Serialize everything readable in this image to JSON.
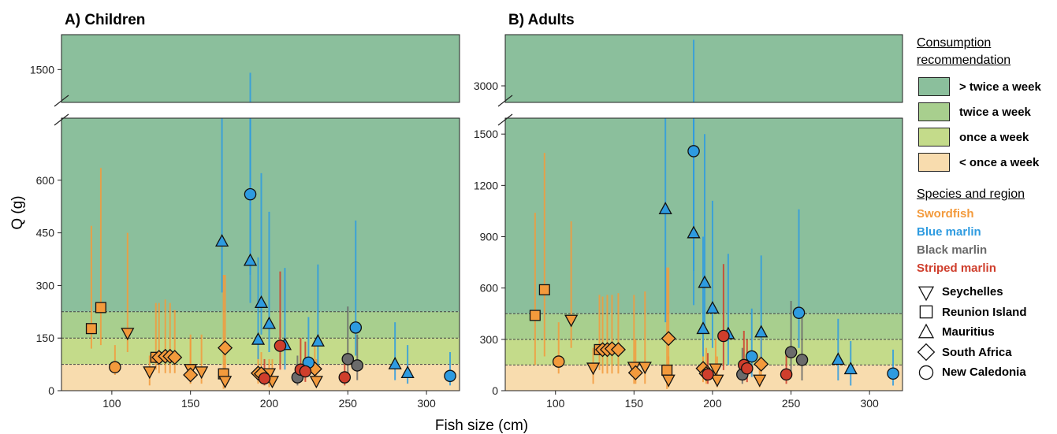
{
  "axis_labels": {
    "x": "Fish size (cm)",
    "y": "Q (g)"
  },
  "legend": {
    "recommendation_title": "Consumption recommendation",
    "recommendation": [
      {
        "label": "> twice a week",
        "color": "#8bbf9c"
      },
      {
        "label": "twice a week",
        "color": "#a8cf8e"
      },
      {
        "label": "once a week",
        "color": "#c4db8a"
      },
      {
        "label": "< once a week",
        "color": "#f8dcae"
      }
    ],
    "species_title": "Species and region",
    "species": [
      {
        "name": "Swordfish",
        "color": "#f39a3c"
      },
      {
        "name": "Blue marlin",
        "color": "#2e9be0"
      },
      {
        "name": "Black marlin",
        "color": "#6b6b6b"
      },
      {
        "name": "Striped marlin",
        "color": "#cf3e2c"
      }
    ],
    "regions": [
      {
        "name": "Seychelles",
        "shape": "triangle-down"
      },
      {
        "name": "Reunion Island",
        "shape": "square"
      },
      {
        "name": "Mauritius",
        "shape": "triangle-up"
      },
      {
        "name": "South Africa",
        "shape": "diamond"
      },
      {
        "name": "New Caledonia",
        "shape": "circle"
      }
    ]
  },
  "chart_data": [
    {
      "type": "scatter",
      "title": "A) Children",
      "xlim": [
        68,
        321
      ],
      "xticks": [
        100,
        150,
        200,
        250,
        300
      ],
      "ylim": [
        0,
        1600
      ],
      "ybreak": [
        777,
        1406
      ],
      "yticks": [
        0,
        150,
        300,
        450,
        600,
        1500
      ],
      "thresholds": [
        75,
        150,
        225
      ],
      "series": [
        {
          "species": "Swordfish",
          "region": "Reunion Island",
          "x": [
            87,
            93,
            128,
            171
          ],
          "values": [
            177,
            237,
            95,
            48
          ],
          "low": [
            120,
            130,
            60,
            5
          ],
          "high": [
            470,
            635,
            250,
            330
          ]
        },
        {
          "species": "Swordfish",
          "region": "New Caledonia",
          "x": [
            102
          ],
          "values": [
            67
          ],
          "low": [
            45
          ],
          "high": [
            130
          ]
        },
        {
          "species": "Swordfish",
          "region": "Seychelles",
          "x": [
            110,
            124,
            150,
            157,
            172,
            200,
            202,
            230
          ],
          "values": [
            165,
            55,
            62,
            55,
            28,
            50,
            28,
            28
          ],
          "low": [
            110,
            15,
            20,
            20,
            10,
            10,
            10,
            10
          ],
          "high": [
            450,
            100,
            150,
            160,
            90,
            90,
            90,
            90
          ]
        },
        {
          "species": "Swordfish",
          "region": "South Africa",
          "x": [
            130,
            134,
            137,
            140,
            150,
            172,
            193,
            195,
            229
          ],
          "values": [
            95,
            98,
            98,
            95,
            45,
            122,
            50,
            48,
            62
          ],
          "low": [
            50,
            50,
            50,
            50,
            20,
            60,
            20,
            20,
            30
          ],
          "high": [
            250,
            260,
            250,
            230,
            160,
            330,
            120,
            110,
            130
          ]
        },
        {
          "species": "Blue marlin",
          "region": "Mauritius",
          "x": [
            170,
            188,
            193,
            195,
            200,
            210,
            231,
            280,
            288
          ],
          "values": [
            425,
            370,
            145,
            250,
            190,
            130,
            140,
            75,
            50
          ],
          "low": [
            280,
            250,
            90,
            160,
            110,
            60,
            60,
            30,
            20
          ],
          "high": [
            780,
            800,
            380,
            620,
            510,
            350,
            360,
            195,
            130
          ]
        },
        {
          "species": "Blue marlin",
          "region": "New Caledonia",
          "x": [
            188,
            225,
            255,
            315
          ],
          "values": [
            560,
            80,
            180,
            42
          ],
          "low": [
            330,
            40,
            100,
            15
          ],
          "high": [
            1491,
            210,
            485,
            110
          ]
        },
        {
          "species": "Black marlin",
          "region": "New Caledonia",
          "x": [
            218,
            250,
            256
          ],
          "values": [
            38,
            90,
            72
          ],
          "low": [
            15,
            40,
            30
          ],
          "high": [
            100,
            240,
            160
          ]
        },
        {
          "species": "Striped marlin",
          "region": "New Caledonia",
          "x": [
            197,
            207,
            220,
            223,
            248
          ],
          "values": [
            35,
            128,
            60,
            55,
            38
          ],
          "low": [
            15,
            60,
            25,
            25,
            15
          ],
          "high": [
            90,
            340,
            150,
            140,
            90
          ]
        }
      ]
    },
    {
      "type": "scatter",
      "title": "B) Adults",
      "xlim": [
        68,
        321
      ],
      "xticks": [
        100,
        150,
        200,
        250,
        300
      ],
      "ylim": [
        0,
        3300
      ],
      "ybreak": [
        1593,
        2903
      ],
      "yticks": [
        0,
        300,
        600,
        900,
        1200,
        1500,
        3000
      ],
      "thresholds": [
        150,
        300,
        450
      ],
      "series": [
        {
          "species": "Swordfish",
          "region": "Reunion Island",
          "x": [
            87,
            93,
            128,
            171
          ],
          "values": [
            440,
            590,
            240,
            120
          ],
          "low": [
            150,
            200,
            120,
            10
          ],
          "high": [
            1040,
            1390,
            560,
            720
          ]
        },
        {
          "species": "Swordfish",
          "region": "New Caledonia",
          "x": [
            102
          ],
          "values": [
            170
          ],
          "low": [
            100
          ],
          "high": [
            400
          ]
        },
        {
          "species": "Swordfish",
          "region": "Seychelles",
          "x": [
            110,
            124,
            150,
            157,
            172,
            202,
            203,
            230
          ],
          "values": [
            415,
            135,
            140,
            140,
            65,
            130,
            65,
            65
          ],
          "low": [
            250,
            40,
            40,
            40,
            20,
            40,
            20,
            20
          ],
          "high": [
            990,
            250,
            560,
            580,
            200,
            300,
            200,
            200
          ]
        },
        {
          "species": "Swordfish",
          "region": "South Africa",
          "x": [
            130,
            133,
            136,
            140,
            151,
            172,
            194,
            196,
            231
          ],
          "values": [
            240,
            240,
            245,
            240,
            105,
            305,
            130,
            100,
            155
          ],
          "low": [
            100,
            100,
            100,
            100,
            40,
            120,
            50,
            40,
            60
          ],
          "high": [
            550,
            560,
            560,
            570,
            300,
            720,
            300,
            250,
            330
          ]
        },
        {
          "species": "Blue marlin",
          "region": "Mauritius",
          "x": [
            170,
            188,
            194,
            195,
            200,
            210,
            231,
            280,
            288
          ],
          "values": [
            1060,
            920,
            360,
            630,
            480,
            330,
            340,
            180,
            125
          ],
          "low": [
            400,
            500,
            200,
            350,
            250,
            150,
            150,
            60,
            30
          ],
          "high": [
            1593,
            1593,
            900,
            1500,
            1110,
            800,
            790,
            420,
            290
          ]
        },
        {
          "species": "Blue marlin",
          "region": "New Caledonia",
          "x": [
            188,
            225,
            255,
            315
          ],
          "values": [
            1400,
            200,
            455,
            100
          ],
          "low": [
            700,
            80,
            250,
            30
          ],
          "high": [
            3270,
            480,
            1060,
            240
          ]
        },
        {
          "species": "Black marlin",
          "region": "New Caledonia",
          "x": [
            219,
            250,
            257
          ],
          "values": [
            95,
            225,
            180
          ],
          "low": [
            40,
            80,
            60
          ],
          "high": [
            250,
            525,
            450
          ]
        },
        {
          "species": "Striped marlin",
          "region": "New Caledonia",
          "x": [
            197,
            207,
            220,
            222,
            247
          ],
          "values": [
            95,
            320,
            150,
            130,
            95
          ],
          "low": [
            40,
            120,
            60,
            50,
            40
          ],
          "high": [
            220,
            740,
            350,
            300,
            220
          ]
        }
      ]
    }
  ]
}
